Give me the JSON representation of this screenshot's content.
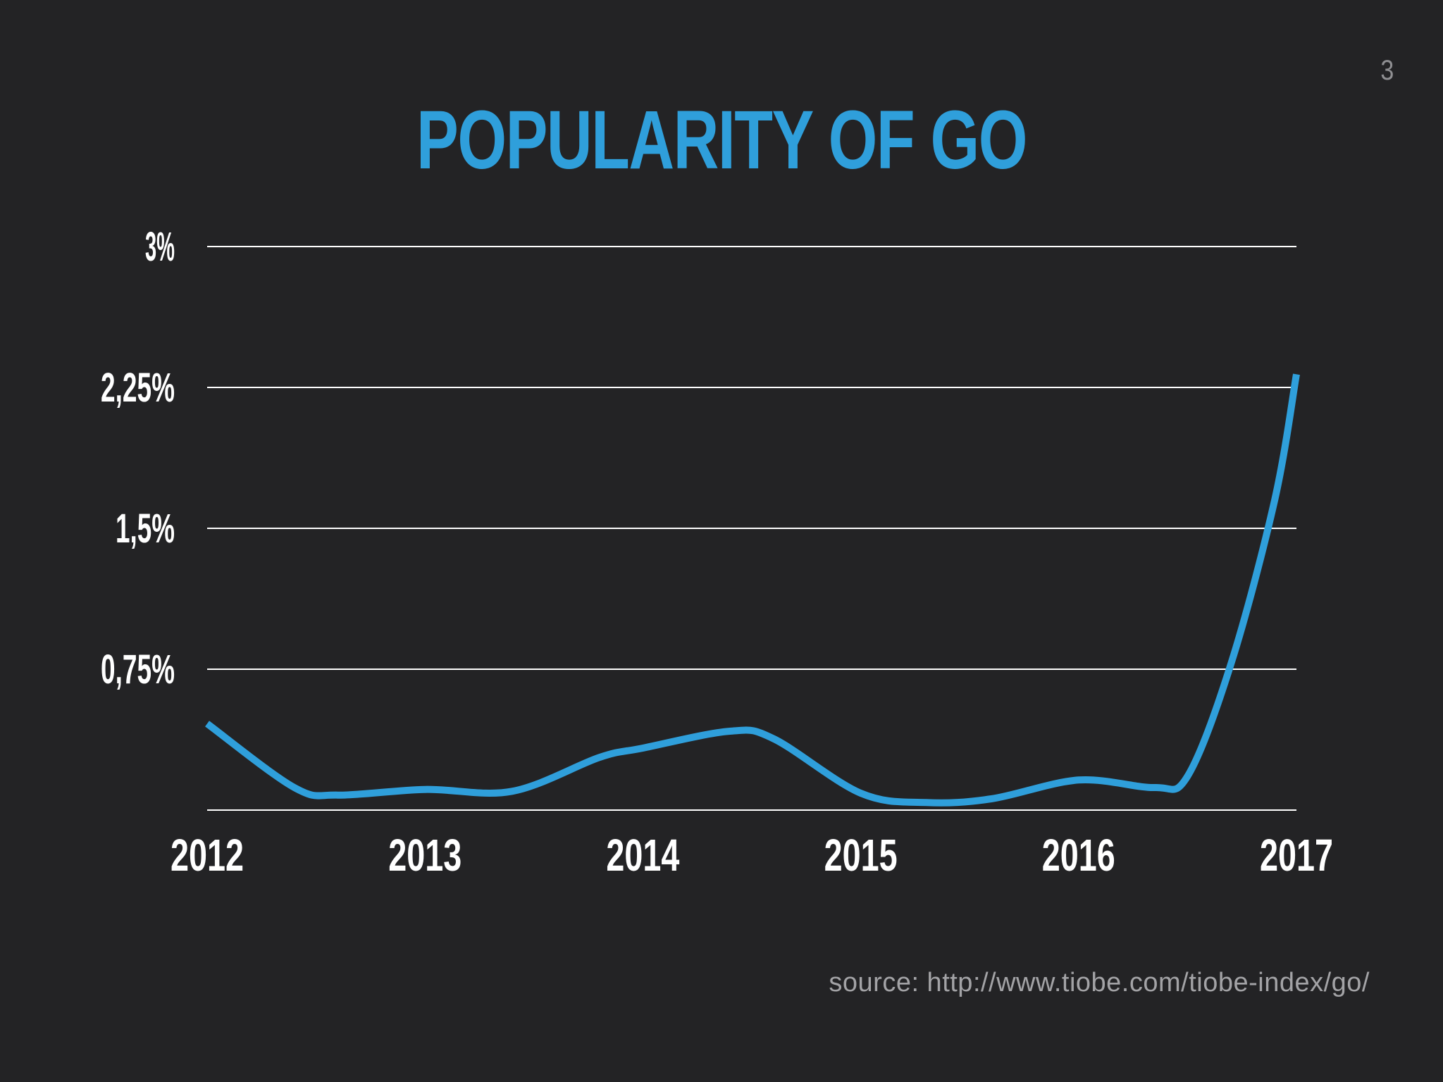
{
  "slide": {
    "number": "3",
    "title": "POPULARITY OF GO",
    "source": "source: http://www.tiobe.com/tiobe-index/go/"
  },
  "colors": {
    "background": "#232325",
    "title": "#2f9fdb",
    "line": "#2f9fdb",
    "grid": "#ffffff",
    "axis_text": "#ffffff",
    "source_text": "#a3a3a6"
  },
  "chart_data": {
    "type": "line",
    "title": "POPULARITY OF GO",
    "xlabel": "",
    "ylabel": "",
    "xlim": [
      2012,
      2017
    ],
    "ylim": [
      0,
      3
    ],
    "grid": true,
    "x_ticks": [
      "2012",
      "2013",
      "2014",
      "2015",
      "2016",
      "2017"
    ],
    "y_ticks": [
      {
        "value": 3,
        "label": "3%"
      },
      {
        "value": 2.25,
        "label": "2,25%"
      },
      {
        "value": 1.5,
        "label": "1,5%"
      },
      {
        "value": 0.75,
        "label": "0,75%"
      }
    ],
    "series": [
      {
        "x": [
          2012.0,
          2012.4,
          2012.6,
          2013.0,
          2013.4,
          2013.8,
          2014.0,
          2014.4,
          2014.6,
          2015.0,
          2015.3,
          2015.6,
          2016.0,
          2016.35,
          2016.5,
          2016.7,
          2016.9,
          2017.0
        ],
        "values": [
          0.46,
          0.12,
          0.08,
          0.11,
          0.1,
          0.28,
          0.33,
          0.42,
          0.38,
          0.09,
          0.04,
          0.06,
          0.16,
          0.12,
          0.18,
          0.78,
          1.65,
          2.32
        ]
      }
    ]
  }
}
